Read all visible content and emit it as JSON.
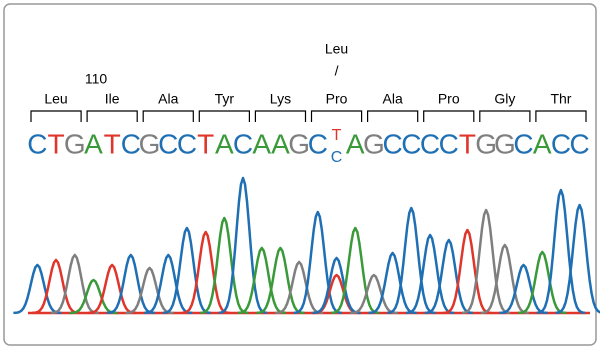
{
  "position_label": "110",
  "variant": {
    "amino_acid": "Leu",
    "slash": "/"
  },
  "base_colors": {
    "A": "#3a9a3a",
    "C": "#1f6fb4",
    "G": "#7f7f7f",
    "T": "#e0352b"
  },
  "codons": [
    {
      "amino_acid": "Leu",
      "bases": [
        "C",
        "T",
        "G"
      ],
      "heights": [
        48,
        53,
        58
      ]
    },
    {
      "amino_acid": "Ile",
      "bases": [
        "A",
        "T",
        "C"
      ],
      "heights": [
        33,
        48,
        58
      ]
    },
    {
      "amino_acid": "Ala",
      "bases": [
        "G",
        "C",
        "C"
      ],
      "heights": [
        45,
        58,
        85
      ]
    },
    {
      "amino_acid": "Tyr",
      "bases": [
        "T",
        "A",
        "C"
      ],
      "heights": [
        81,
        95,
        135
      ]
    },
    {
      "amino_acid": "Lys",
      "bases": [
        "A",
        "A",
        "G"
      ],
      "heights": [
        65,
        65,
        51
      ]
    },
    {
      "amino_acid": "Pro",
      "bases": [
        "C",
        {
          "top": "T",
          "bottom": "C"
        },
        "A"
      ],
      "heights": [
        101,
        {
          "top": 38,
          "bottom": 55
        },
        85
      ]
    },
    {
      "amino_acid": "Ala",
      "bases": [
        "G",
        "C",
        "C"
      ],
      "heights": [
        38,
        60,
        105
      ]
    },
    {
      "amino_acid": "Pro",
      "bases": [
        "C",
        "C",
        "T"
      ],
      "heights": [
        78,
        73,
        83
      ]
    },
    {
      "amino_acid": "Gly",
      "bases": [
        "G",
        "G",
        "C"
      ],
      "heights": [
        103,
        68,
        48
      ]
    },
    {
      "amino_acid": "Thr",
      "bases": [
        "A",
        "C",
        "C"
      ],
      "heights": [
        61,
        123,
        108
      ]
    }
  ]
}
